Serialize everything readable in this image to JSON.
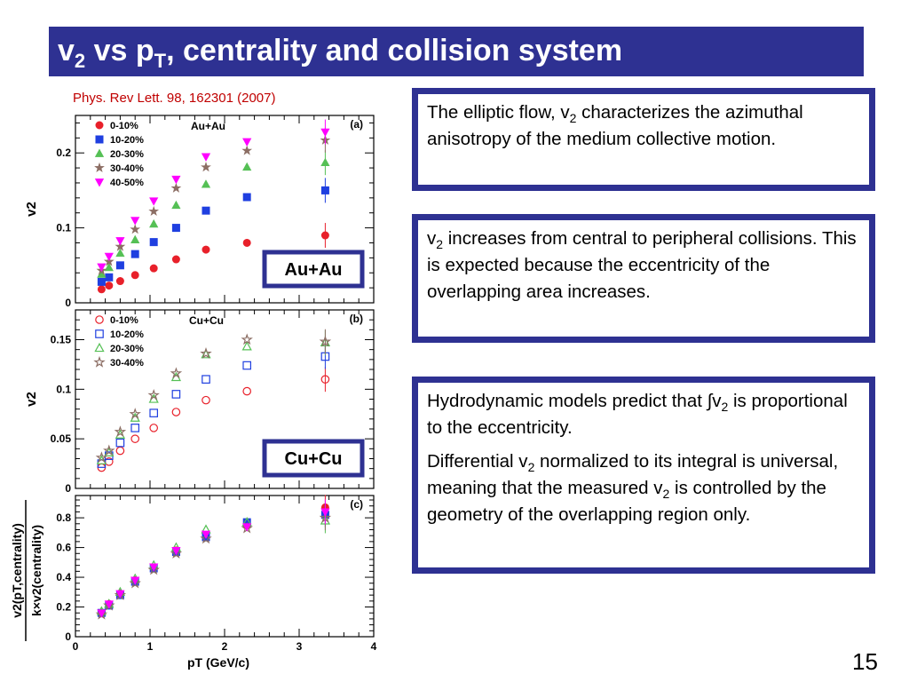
{
  "slide": {
    "title_main": "v",
    "title_sub1": "2",
    "title_mid": " vs p",
    "title_sub2": "T",
    "title_rest": ", centrality and collision system",
    "citation": "Phys. Rev Lett. 98, 162301 (2007)",
    "page_number": "15",
    "accent_color": "#2e3192",
    "citation_color": "#c00000"
  },
  "boxes": {
    "box1": {
      "t1": "The elliptic flow, v",
      "s1": "2",
      "t2": " characterizes the azimuthal anisotropy of the medium collective motion."
    },
    "box2": {
      "t1": "v",
      "s1": "2",
      "t2": " increases from central to peripheral collisions. This is expected because the eccentricity of the overlapping area increases."
    },
    "box3": {
      "p1_t1": "Hydrodynamic models predict that ∫v",
      "p1_s1": "2",
      "p1_t2": " is proportional to the eccentricity.",
      "p2_t1": "Differential v",
      "p2_s1": "2",
      "p2_t2": " normalized to its integral is universal, meaning that the measured v",
      "p2_s2": "2",
      "p2_t3": " is controlled by the geometry of the overlapping region only."
    }
  },
  "chart_data": [
    {
      "type": "scatter",
      "panel": "(a)",
      "system_label": "Au+Au",
      "overlay_label": "Au+Au",
      "ylabel": "v2",
      "xlim": [
        0,
        4
      ],
      "ylim": [
        0,
        0.25
      ],
      "yticks": [
        "0",
        "0.1",
        "0.2"
      ],
      "x": [
        0.35,
        0.45,
        0.6,
        0.8,
        1.05,
        1.35,
        1.75,
        2.3,
        3.35
      ],
      "series": [
        {
          "name": "0-10%",
          "marker": "circle",
          "filled": true,
          "color": "#e8202a",
          "values": [
            0.018,
            0.023,
            0.029,
            0.037,
            0.046,
            0.058,
            0.071,
            0.08,
            0.09
          ]
        },
        {
          "name": "10-20%",
          "marker": "square",
          "filled": true,
          "color": "#1f3fe0",
          "values": [
            0.028,
            0.034,
            0.05,
            0.065,
            0.081,
            0.1,
            0.123,
            0.141,
            0.15
          ]
        },
        {
          "name": "20-30%",
          "marker": "triangle-up",
          "filled": true,
          "color": "#55c055",
          "values": [
            0.038,
            0.047,
            0.066,
            0.084,
            0.105,
            0.13,
            0.158,
            0.181,
            0.187
          ]
        },
        {
          "name": "30-40%",
          "marker": "star",
          "filled": true,
          "color": "#8c6e64",
          "values": [
            0.043,
            0.055,
            0.075,
            0.098,
            0.122,
            0.153,
            0.181,
            0.203,
            0.217
          ]
        },
        {
          "name": "40-50%",
          "marker": "triangle-down",
          "filled": true,
          "color": "#ff00ff",
          "values": [
            0.048,
            0.062,
            0.083,
            0.11,
            0.136,
            0.165,
            0.195,
            0.215,
            0.228
          ]
        }
      ]
    },
    {
      "type": "scatter",
      "panel": "(b)",
      "system_label": "Cu+Cu",
      "overlay_label": "Cu+Cu",
      "ylabel": "v2",
      "xlim": [
        0,
        4
      ],
      "ylim": [
        0,
        0.18
      ],
      "yticks": [
        "0",
        "0.05",
        "0.1",
        "0.15"
      ],
      "x": [
        0.35,
        0.45,
        0.6,
        0.8,
        1.05,
        1.35,
        1.75,
        2.3,
        3.35
      ],
      "series": [
        {
          "name": "0-10%",
          "marker": "circle",
          "filled": false,
          "color": "#e8202a",
          "values": [
            0.021,
            0.027,
            0.038,
            0.05,
            0.061,
            0.077,
            0.089,
            0.098,
            0.11
          ]
        },
        {
          "name": "10-20%",
          "marker": "square",
          "filled": false,
          "color": "#1f3fe0",
          "values": [
            0.025,
            0.033,
            0.046,
            0.061,
            0.076,
            0.095,
            0.11,
            0.124,
            0.133
          ]
        },
        {
          "name": "20-30%",
          "marker": "triangle-up",
          "filled": false,
          "color": "#55c055",
          "values": [
            0.028,
            0.036,
            0.054,
            0.071,
            0.09,
            0.112,
            0.135,
            0.143,
            0.147
          ]
        },
        {
          "name": "30-40%",
          "marker": "star",
          "filled": false,
          "color": "#8c6e64",
          "values": [
            0.031,
            0.038,
            0.057,
            0.075,
            0.094,
            0.116,
            0.136,
            0.15,
            0.148
          ]
        }
      ]
    },
    {
      "type": "scatter",
      "panel": "(c)",
      "ylabel_num": "v2(pT,centrality)",
      "ylabel_den": "k×v2(centrality)",
      "xlabel": "pT (GeV/c)",
      "xlim": [
        0,
        4
      ],
      "ylim": [
        0,
        0.95
      ],
      "xticks": [
        "0",
        "1",
        "2",
        "3",
        "4"
      ],
      "yticks": [
        "0",
        "0.2",
        "0.4",
        "0.6",
        "0.8"
      ],
      "x": [
        0.35,
        0.45,
        0.6,
        0.8,
        1.05,
        1.35,
        1.75,
        2.3,
        3.35
      ],
      "series": [
        {
          "name": "0-10%",
          "marker": "circle",
          "filled": true,
          "color": "#e8202a",
          "values": [
            0.16,
            0.22,
            0.29,
            0.38,
            0.46,
            0.58,
            0.68,
            0.75,
            0.87
          ]
        },
        {
          "name": "10-20%",
          "marker": "square",
          "filled": true,
          "color": "#1f3fe0",
          "values": [
            0.16,
            0.21,
            0.28,
            0.37,
            0.46,
            0.57,
            0.67,
            0.77,
            0.82
          ]
        },
        {
          "name": "20-30%",
          "marker": "triangle-up",
          "filled": false,
          "color": "#55c055",
          "values": [
            0.17,
            0.22,
            0.3,
            0.39,
            0.48,
            0.6,
            0.72,
            0.77,
            0.78
          ]
        },
        {
          "name": "30-40%",
          "marker": "star",
          "filled": false,
          "color": "#8c6e64",
          "values": [
            0.15,
            0.21,
            0.28,
            0.36,
            0.45,
            0.56,
            0.66,
            0.73,
            0.8
          ]
        },
        {
          "name": "40-50%",
          "marker": "triangle-down",
          "filled": true,
          "color": "#ff00ff",
          "values": [
            0.16,
            0.22,
            0.29,
            0.38,
            0.47,
            0.58,
            0.69,
            0.74,
            0.84
          ]
        }
      ]
    }
  ]
}
